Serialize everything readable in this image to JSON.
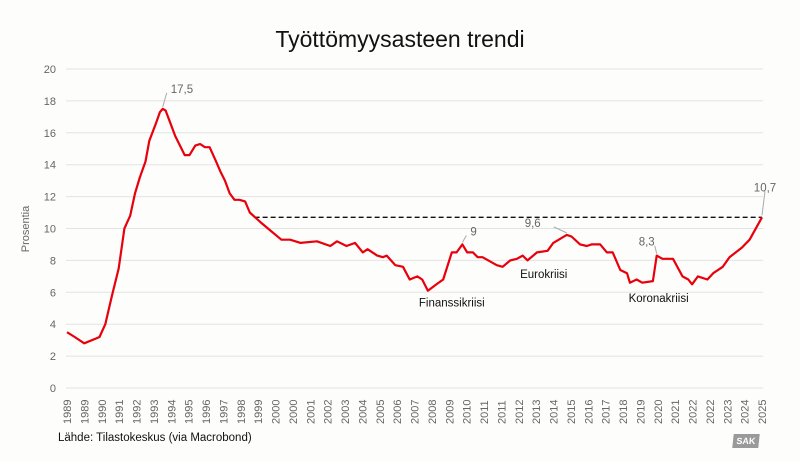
{
  "chart_data": {
    "type": "line",
    "title": "Työttömyysasteen trendi",
    "ylabel": "Prosentia",
    "xlabel": "",
    "ylim": [
      0,
      20
    ],
    "yticks": [
      0,
      2,
      4,
      6,
      8,
      10,
      12,
      14,
      16,
      18,
      20
    ],
    "xlim": [
      1989.0,
      2025.3
    ],
    "xtick_labels": [
      "1989",
      "1989",
      "1990",
      "1991",
      "1992",
      "1993",
      "1994",
      "1995",
      "1996",
      "1997",
      "1998",
      "1999",
      "2000",
      "2000",
      "2001",
      "2002",
      "2003",
      "2004",
      "2005",
      "2006",
      "2007",
      "2008",
      "2009",
      "2010",
      "2011",
      "2011",
      "2012",
      "2013",
      "2014",
      "2015",
      "2016",
      "2017",
      "2018",
      "2019",
      "2020",
      "2021",
      "2022",
      "2022",
      "2023",
      "2024",
      "2025"
    ],
    "grid": true,
    "line_color": "#e8000b",
    "series": [
      {
        "x": [
          1989.0,
          1989.4,
          1989.9,
          1990.5,
          1990.7,
          1991.0,
          1991.35,
          1991.7,
          1992.0,
          1992.3,
          1992.55,
          1992.8,
          1993.1,
          1993.3,
          1993.65,
          1993.85,
          1994.0,
          1994.15,
          1994.4,
          1994.65,
          1994.9,
          1995.15,
          1995.4,
          1995.7,
          1995.95,
          1996.2,
          1996.45,
          1996.75,
          1997.0,
          1997.25,
          1997.5,
          1997.75,
          1998.0,
          1998.3,
          1998.55,
          1999.1,
          1999.6,
          2000.2,
          2000.65,
          2001.2,
          2002.05,
          2002.75,
          2003.1,
          2003.6,
          2004.05,
          2004.45,
          2004.7,
          2005.2,
          2005.5,
          2005.7,
          2006.15,
          2006.55,
          2006.9,
          2007.3,
          2007.55,
          2007.85,
          2008.3,
          2008.65,
          2009.1,
          2009.35,
          2009.65,
          2009.9,
          2010.2,
          2010.45,
          2010.7,
          2011.45,
          2011.75,
          2012.15,
          2012.5,
          2012.8,
          2013.05,
          2013.55,
          2014.1,
          2014.4,
          2015.1,
          2015.35,
          2015.8,
          2016.15,
          2016.4,
          2016.85,
          2017.2,
          2017.5,
          2017.9,
          2018.25,
          2018.4,
          2018.75,
          2019.05,
          2019.6,
          2019.8,
          2020.1,
          2020.65,
          2021.15,
          2021.45,
          2021.65,
          2021.95,
          2022.45,
          2022.75,
          2023.25,
          2023.6,
          2024.25,
          2024.65,
          2025.3
        ],
        "y": [
          3.5,
          3.2,
          2.8,
          3.1,
          3.2,
          4.0,
          5.8,
          7.5,
          10.0,
          10.8,
          12.2,
          13.2,
          14.2,
          15.5,
          16.6,
          17.3,
          17.5,
          17.4,
          16.6,
          15.8,
          15.2,
          14.6,
          14.6,
          15.2,
          15.3,
          15.1,
          15.1,
          14.3,
          13.6,
          13.0,
          12.2,
          11.8,
          11.8,
          11.7,
          11.0,
          10.4,
          9.9,
          9.3,
          9.3,
          9.1,
          9.2,
          8.9,
          9.2,
          8.9,
          9.1,
          8.5,
          8.7,
          8.3,
          8.2,
          8.3,
          7.7,
          7.6,
          6.8,
          7.0,
          6.8,
          6.1,
          6.5,
          6.8,
          8.5,
          8.5,
          9.0,
          8.5,
          8.5,
          8.2,
          8.2,
          7.7,
          7.6,
          8.0,
          8.1,
          8.3,
          8.0,
          8.5,
          8.6,
          9.1,
          9.6,
          9.5,
          9.0,
          8.9,
          9.0,
          9.0,
          8.5,
          8.5,
          7.4,
          7.2,
          6.6,
          6.8,
          6.6,
          6.7,
          8.3,
          8.1,
          8.1,
          7.0,
          6.8,
          6.5,
          7.0,
          6.8,
          7.2,
          7.6,
          8.2,
          8.8,
          9.3,
          10.7
        ]
      }
    ],
    "reference_line": {
      "value": 10.7,
      "from": 1998.8,
      "style": "dashed",
      "color": "#111111"
    },
    "annotations": [
      {
        "text": "17,5",
        "x": 1994.0,
        "y": 17.5
      },
      {
        "text": "9",
        "x": 2009.65,
        "y": 9.0
      },
      {
        "text": "9,6",
        "x": 2015.1,
        "y": 9.6
      },
      {
        "text": "8,3",
        "x": 2019.8,
        "y": 8.3
      },
      {
        "text": "10,7",
        "x": 2025.3,
        "y": 10.7
      }
    ],
    "labels": [
      {
        "text": "Finanssikriisi",
        "x": 2009.1,
        "y": 5.1
      },
      {
        "text": "Eurokriisi",
        "x": 2013.9,
        "y": 6.9
      },
      {
        "text": "Koronakriisi",
        "x": 2019.9,
        "y": 5.4
      }
    ]
  },
  "source": "Lähde: Tilastokeskus (via Macrobond)",
  "logo": "SAK"
}
